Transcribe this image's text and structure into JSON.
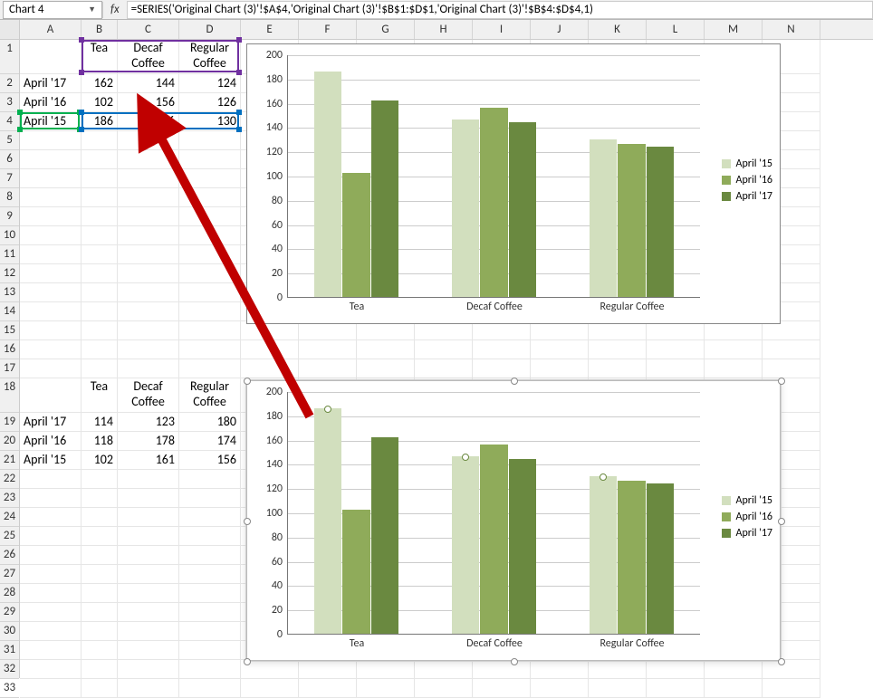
{
  "namebox": "Chart 4",
  "formula": "=SERIES('Original Chart (3)'!$A$4,'Original Chart (3)'!$B$1:$D$1,'Original Chart (3)'!$B$4:$D$4,1)",
  "columns": [
    {
      "l": "A",
      "w": 68
    },
    {
      "l": "B",
      "w": 40
    },
    {
      "l": "C",
      "w": 68
    },
    {
      "l": "D",
      "w": 68
    },
    {
      "l": "E",
      "w": 64
    },
    {
      "l": "F",
      "w": 64
    },
    {
      "l": "G",
      "w": 64
    },
    {
      "l": "H",
      "w": 64
    },
    {
      "l": "I",
      "w": 64
    },
    {
      "l": "J",
      "w": 64
    },
    {
      "l": "K",
      "w": 64
    },
    {
      "l": "L",
      "w": 64
    },
    {
      "l": "M",
      "w": 64
    },
    {
      "l": "N",
      "w": 64
    }
  ],
  "row_count": 33,
  "tall_rows": {
    "1": 38,
    "18": 38
  },
  "table1": {
    "header_row": 1,
    "headers": [
      "",
      "Tea",
      "Decaf\nCoffee",
      "Regular\nCoffee"
    ],
    "rows": [
      {
        "r": 2,
        "label": "April '17",
        "vals": [
          162,
          144,
          124
        ]
      },
      {
        "r": 3,
        "label": "April '16",
        "vals": [
          102,
          156,
          126
        ]
      },
      {
        "r": 4,
        "label": "April '15",
        "vals": [
          186,
          146,
          130
        ]
      }
    ]
  },
  "table2": {
    "header_row": 18,
    "headers": [
      "",
      "Tea",
      "Decaf\nCoffee",
      "Regular\nCoffee"
    ],
    "rows": [
      {
        "r": 19,
        "label": "April '17",
        "vals": [
          114,
          123,
          180
        ]
      },
      {
        "r": 20,
        "label": "April '16",
        "vals": [
          118,
          178,
          174
        ]
      },
      {
        "r": 21,
        "label": "April '15",
        "vals": [
          102,
          161,
          156
        ]
      }
    ]
  },
  "chart": {
    "type": "bar",
    "categories": [
      "Tea",
      "Decaf Coffee",
      "Regular Coffee"
    ],
    "series": [
      {
        "name": "April '15",
        "color": "#d2dfbe",
        "values": [
          186,
          146,
          130
        ]
      },
      {
        "name": "April '16",
        "color": "#8fab5a",
        "values": [
          102,
          156,
          126
        ]
      },
      {
        "name": "April '17",
        "color": "#6a8940",
        "values": [
          162,
          144,
          124
        ]
      }
    ],
    "ylim": [
      0,
      200
    ],
    "ytick_step": 20,
    "grid_color": "#cccccc",
    "axis_color": "#777777",
    "label_fontsize": 12,
    "background": "#ffffff"
  },
  "ranges": {
    "purple": {
      "desc": "B1:D1"
    },
    "green": {
      "desc": "A4"
    },
    "blue": {
      "desc": "B4:D4"
    }
  },
  "legend_labels": [
    "April '15",
    "April '16",
    "April '17"
  ]
}
